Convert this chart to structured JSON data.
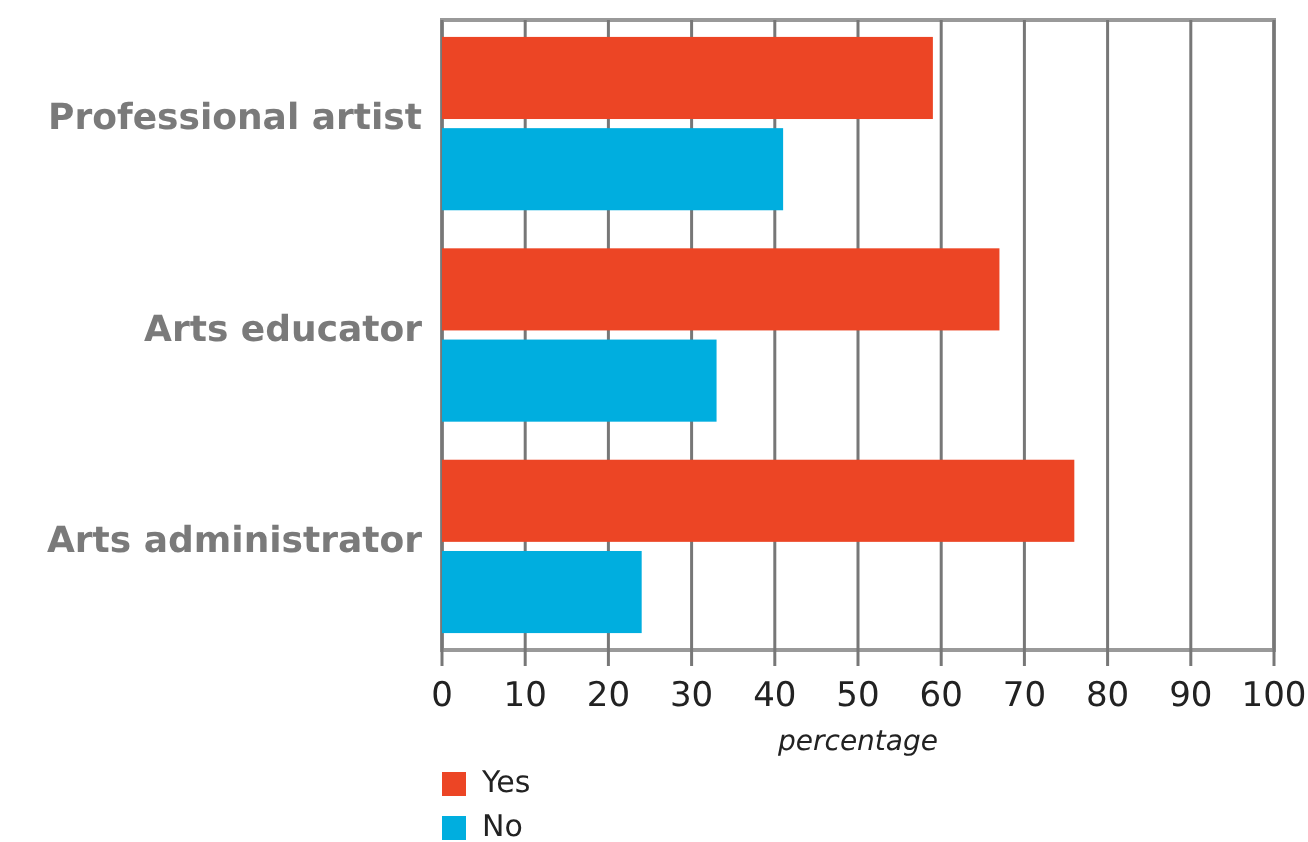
{
  "chart_data": {
    "type": "bar",
    "orientation": "horizontal",
    "categories": [
      "Professional artist",
      "Arts educator",
      "Arts administrator"
    ],
    "series": [
      {
        "name": "Yes",
        "color": "#ec4525",
        "values": [
          59,
          67,
          76
        ]
      },
      {
        "name": "No",
        "color": "#00aedf",
        "values": [
          41,
          33,
          24
        ]
      }
    ],
    "xlabel": "percentage",
    "xlim": [
      0,
      100
    ],
    "xticks": [
      0,
      10,
      20,
      30,
      40,
      50,
      60,
      70,
      80,
      90,
      100
    ],
    "grid": "x",
    "legend": "bottom left"
  }
}
